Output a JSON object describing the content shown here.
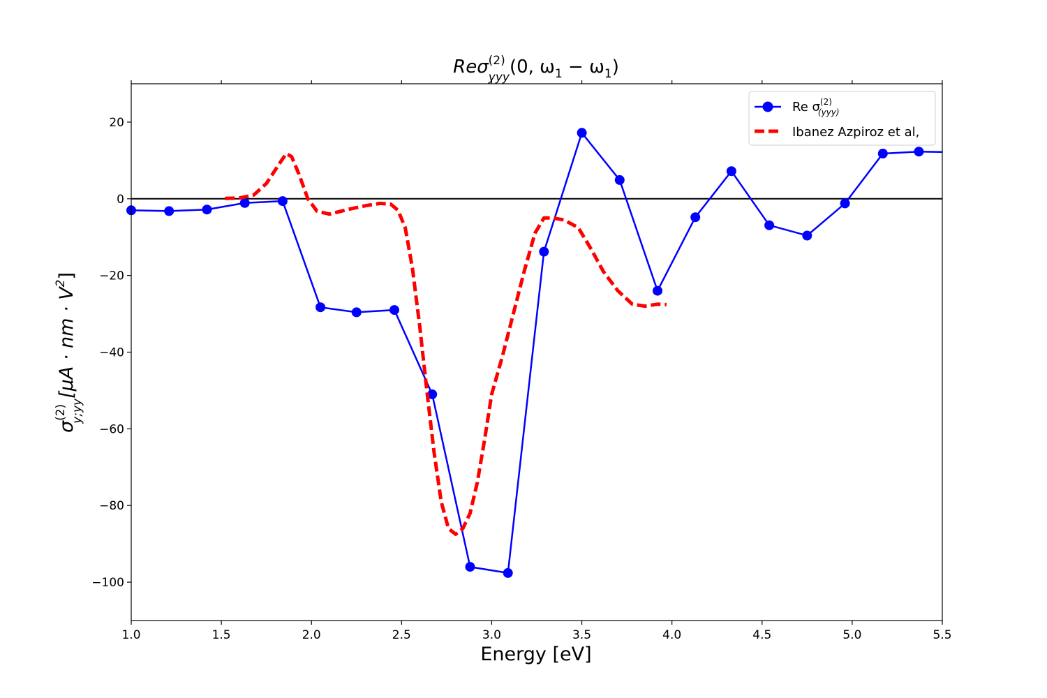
{
  "chart_data": {
    "type": "line",
    "title": {
      "prefix": "Re",
      "sym": "σ",
      "sup": "(2)",
      "sub": "yyy",
      "args": "(0, ω",
      "args_sub1": "1",
      "args_mid": " − ω",
      "args_sub2": "1",
      "args_end": ")"
    },
    "xlabel": "Energy [eV]",
    "ylabel": {
      "sym": "σ",
      "sup": "(2)",
      "sub": "y;yy",
      "units": "[μA · nm · V",
      "units_sup": "2",
      "units_end": "]"
    },
    "xlim": [
      1.0,
      5.5
    ],
    "ylim": [
      -110,
      30
    ],
    "xticks": [
      1.0,
      1.5,
      2.0,
      2.5,
      3.0,
      3.5,
      4.0,
      4.5,
      5.0,
      5.5
    ],
    "xtick_labels": [
      "1.0",
      "1.5",
      "2.0",
      "2.5",
      "3.0",
      "3.5",
      "4.0",
      "4.5",
      "5.0",
      "5.5"
    ],
    "yticks": [
      20,
      0,
      -20,
      -40,
      -60,
      -80,
      -100
    ],
    "ytick_labels": [
      "20",
      "0",
      "−20",
      "−40",
      "−60",
      "−80",
      "−100"
    ],
    "grid": false,
    "zero_line": true,
    "legend_position": "top-right",
    "series": [
      {
        "name": "Re σ",
        "name_sup": "(2)",
        "name_sub": "(yyy)",
        "style": "solid-marker",
        "color": "#0000ff",
        "x": [
          1.0,
          1.21,
          1.42,
          1.63,
          1.84,
          2.05,
          2.25,
          2.46,
          2.67,
          2.88,
          3.09,
          3.29,
          3.5,
          3.71,
          3.92,
          4.13,
          4.33,
          4.54,
          4.75,
          4.96,
          5.17,
          5.37,
          5.5
        ],
        "y": [
          -3,
          -3.2,
          -2.8,
          -1.1,
          -0.6,
          -28.3,
          -29.6,
          -29.0,
          -51.0,
          -96.0,
          -97.6,
          -13.8,
          17.2,
          4.9,
          -24.0,
          -4.8,
          7.2,
          -6.9,
          -9.6,
          -1.2,
          11.8,
          12.3,
          12.2
        ],
        "markers": [
          true,
          true,
          true,
          true,
          true,
          true,
          true,
          true,
          true,
          true,
          true,
          true,
          true,
          true,
          true,
          true,
          true,
          true,
          true,
          true,
          true,
          true,
          false
        ]
      },
      {
        "name": "Ibanez Azpiroz et al,",
        "style": "dashed",
        "color": "#ff0000",
        "x": [
          1.52,
          1.6,
          1.68,
          1.75,
          1.82,
          1.86,
          1.89,
          1.93,
          1.98,
          2.03,
          2.1,
          2.2,
          2.3,
          2.38,
          2.44,
          2.48,
          2.52,
          2.56,
          2.6,
          2.64,
          2.68,
          2.72,
          2.76,
          2.8,
          2.84,
          2.88,
          2.92,
          2.96,
          3.0,
          3.06,
          3.12,
          3.18,
          3.24,
          3.29,
          3.34,
          3.4,
          3.48,
          3.55,
          3.62,
          3.7,
          3.78,
          3.85,
          3.92,
          3.97
        ],
        "y": [
          0.1,
          0.2,
          1.0,
          4.0,
          9.0,
          11.8,
          11.0,
          6.5,
          0.0,
          -3.2,
          -4.0,
          -2.8,
          -1.8,
          -1.2,
          -1.4,
          -3.0,
          -7.5,
          -18.0,
          -33.0,
          -50.0,
          -66.0,
          -79.0,
          -86.0,
          -87.5,
          -86.0,
          -82.0,
          -74.0,
          -63.0,
          -51.0,
          -41.0,
          -30.0,
          -19.0,
          -9.0,
          -5.0,
          -5.0,
          -5.5,
          -7.5,
          -13.0,
          -19.0,
          -24.0,
          -27.5,
          -28.0,
          -27.5,
          -27.6
        ]
      }
    ]
  }
}
